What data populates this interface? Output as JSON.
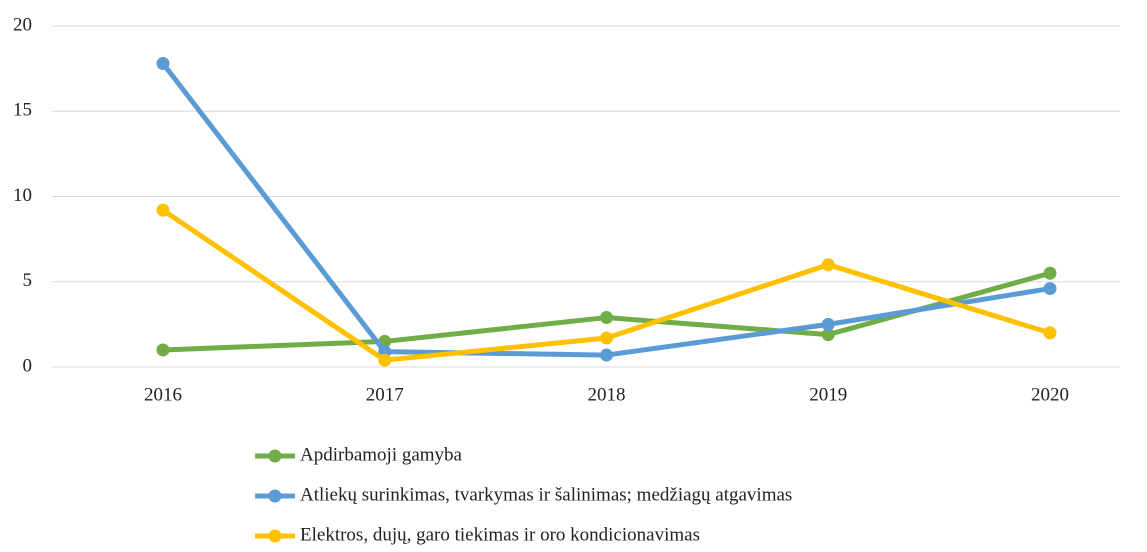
{
  "chart_data": {
    "type": "line",
    "categories": [
      "2016",
      "2017",
      "2018",
      "2019",
      "2020"
    ],
    "series": [
      {
        "name": "Apdirbamoji gamyba",
        "color": "#70ad47",
        "values": [
          1.0,
          1.5,
          2.9,
          1.9,
          5.5
        ]
      },
      {
        "name": "Atliekų surinkimas, tvarkymas ir šalinimas; medžiagų atgavimas",
        "color": "#5b9bd5",
        "values": [
          17.8,
          0.9,
          0.7,
          2.5,
          4.6
        ]
      },
      {
        "name": "Elektros, dujų, garo tiekimas ir oro kondicionavimas",
        "color": "#ffc000",
        "values": [
          9.2,
          0.4,
          1.7,
          6.0,
          2.0
        ]
      }
    ],
    "ylim": [
      0,
      20
    ],
    "yticks": [
      0,
      5,
      10,
      15,
      20
    ],
    "grid": true,
    "legend": "bottom"
  }
}
